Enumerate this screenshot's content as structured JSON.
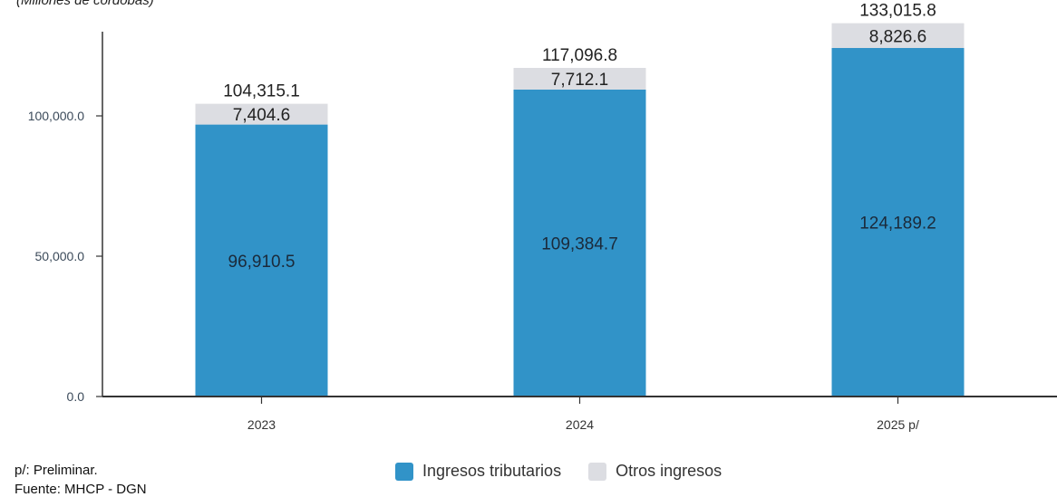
{
  "subtitle": "(Millones de córdobas)",
  "footnotes": [
    "p/: Preliminar.",
    "Fuente: MHCP - DGN"
  ],
  "colors": {
    "tributarios": "#3193c8",
    "otros": "#dcdde2",
    "axis": "#333333"
  },
  "chart_data": {
    "type": "bar",
    "stacked": true,
    "categories": [
      "2023",
      "2024",
      "2025 p/"
    ],
    "series": [
      {
        "name": "Ingresos tributarios",
        "values": [
          96910.5,
          109384.7,
          124189.2
        ],
        "labels": [
          "96,910.5",
          "109,384.7",
          "124,189.2"
        ]
      },
      {
        "name": "Otros ingresos",
        "values": [
          7404.6,
          7712.1,
          8826.6
        ],
        "labels": [
          "7,404.6",
          "7,712.1",
          "8,826.6"
        ]
      }
    ],
    "totals": [
      104315.1,
      117096.8,
      133015.8
    ],
    "total_labels": [
      "104,315.1",
      "117,096.8",
      "133,015.8"
    ],
    "ylim": [
      0,
      130000
    ],
    "yticks": [
      0,
      50000,
      100000
    ],
    "ytick_labels": [
      "0.0",
      "50,000.0",
      "100,000.0"
    ],
    "legend_position": "bottom",
    "grid": false
  }
}
